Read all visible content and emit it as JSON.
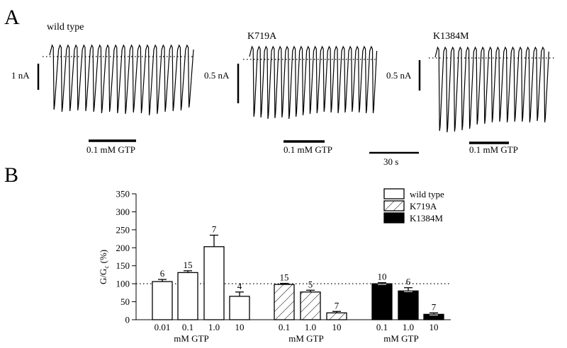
{
  "panel_a": {
    "label": "A",
    "traces": [
      {
        "title": "wild type",
        "scale_label": "1 nA",
        "bar_label": "0.1 mM GTP"
      },
      {
        "title": "K719A",
        "scale_label": "0.5 nA",
        "bar_label": "0.1 mM GTP"
      },
      {
        "title": "K1384M",
        "scale_label": "0.5 nA",
        "bar_label": "0.1 mM GTP"
      }
    ],
    "time_scale_label": "30 s"
  },
  "panel_b": {
    "label": "B"
  },
  "chart_data": {
    "type": "bar",
    "ylabel": "G/G",
    "ylabel_sub": "c",
    "ylabel_unit": "(%)",
    "ylim": [
      0,
      350
    ],
    "yticks": [
      0,
      50,
      100,
      150,
      200,
      250,
      300,
      350
    ],
    "reference_line": 100,
    "groups": [
      {
        "series": "wild type",
        "fill": "open",
        "xlabel": "mM GTP",
        "categories": [
          "0.01",
          "0.1",
          "1.0",
          "10"
        ],
        "values": [
          106,
          131,
          203,
          65
        ],
        "errors": [
          6,
          5,
          32,
          12
        ],
        "n": [
          "6",
          "15",
          "7",
          "4"
        ]
      },
      {
        "series": "K719A",
        "fill": "hatched",
        "xlabel": "mM GTP",
        "categories": [
          "0.1",
          "1.0",
          "10"
        ],
        "values": [
          98,
          77,
          19
        ],
        "errors": [
          3,
          5,
          4
        ],
        "n": [
          "15",
          "5",
          "7"
        ]
      },
      {
        "series": "K1384M",
        "fill": "solid",
        "xlabel": "mM GTP",
        "categories": [
          "0.1",
          "1.0",
          "10"
        ],
        "values": [
          100,
          80,
          15
        ],
        "errors": [
          3,
          9,
          4
        ],
        "n": [
          "10",
          "6",
          "7"
        ]
      }
    ],
    "legend": [
      "wild type",
      "K719A",
      "K1384M"
    ],
    "legend_position": "top-right"
  }
}
